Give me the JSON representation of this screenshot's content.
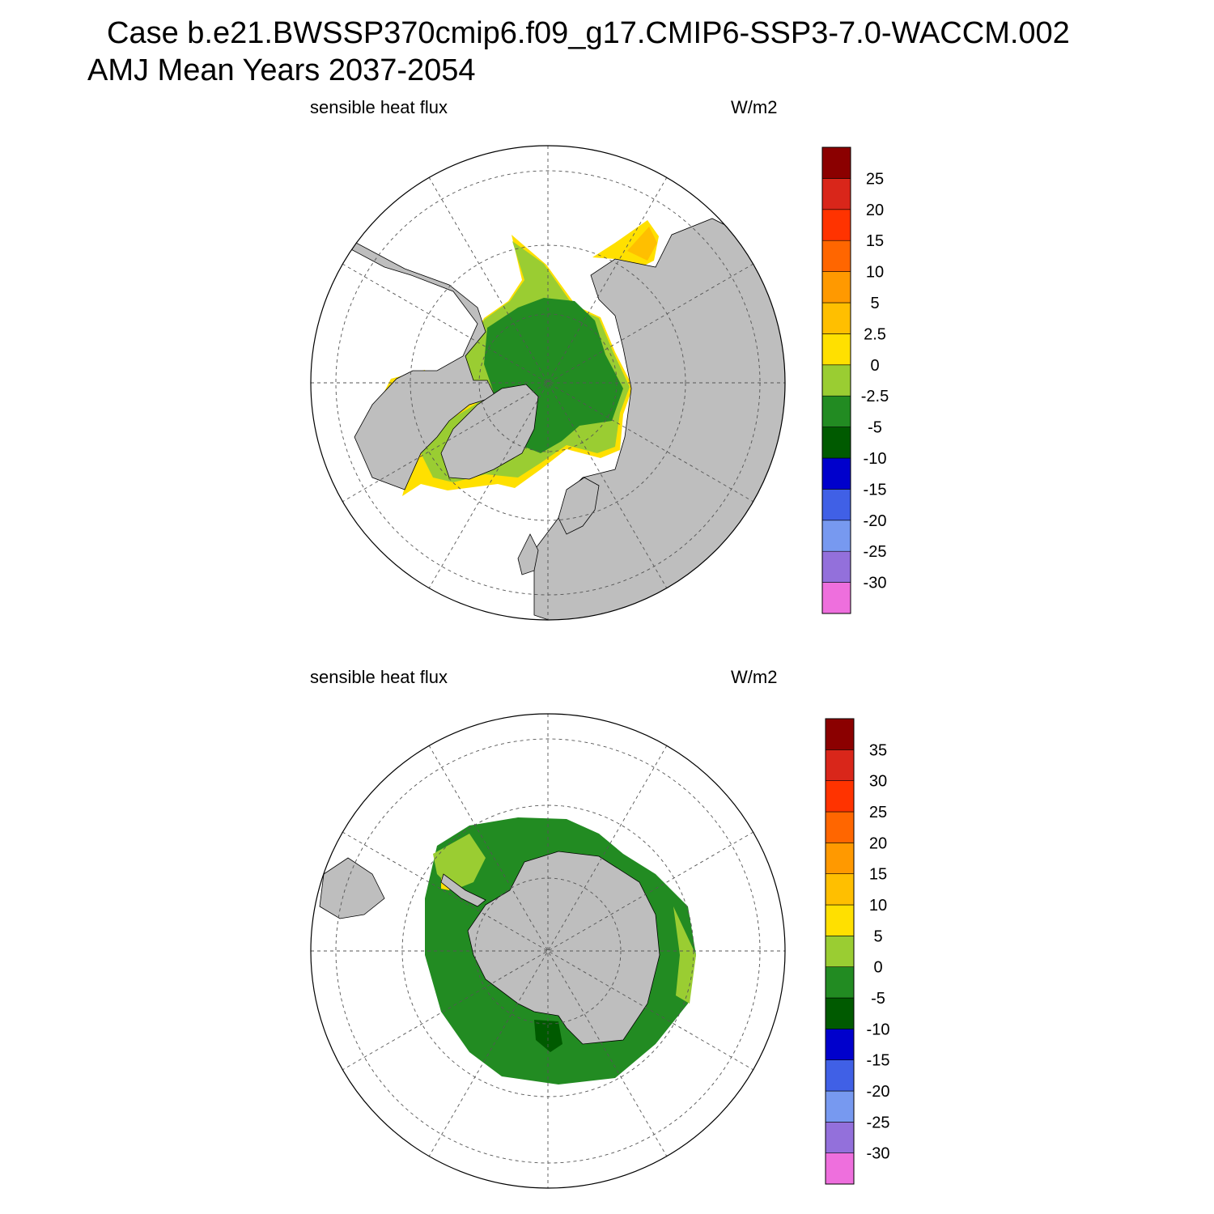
{
  "header": {
    "line1": "Case b.e21.BWSSP370cmip6.f09_g17.CMIP6-SSP3-7.0-WACCM.002",
    "line2": "AMJ Mean   Years 2037-2054"
  },
  "panels": [
    {
      "id": "north",
      "hemisphere": "north",
      "variable_label": "sensible heat flux",
      "units_label": "W/m2",
      "colorbar": {
        "colors": [
          "#ee6fdd",
          "#9370db",
          "#7799f0",
          "#4060e6",
          "#0000cc",
          "#005a00",
          "#228b22",
          "#9acd32",
          "#ffe000",
          "#ffbf00",
          "#ff9900",
          "#ff6600",
          "#ff3300",
          "#d9261a",
          "#8b0000"
        ],
        "tick_labels": [
          "-30",
          "-25",
          "-20",
          "-15",
          "-10",
          "-5",
          "-2.5",
          "0",
          "2.5",
          "5",
          "10",
          "15",
          "20",
          "25"
        ]
      }
    },
    {
      "id": "south",
      "hemisphere": "south",
      "variable_label": "sensible heat flux",
      "units_label": "W/m2",
      "colorbar": {
        "colors": [
          "#ee6fdd",
          "#9370db",
          "#7799f0",
          "#4060e6",
          "#0000cc",
          "#005a00",
          "#228b22",
          "#9acd32",
          "#ffe000",
          "#ffbf00",
          "#ff9900",
          "#ff6600",
          "#ff3300",
          "#d9261a",
          "#8b0000"
        ],
        "tick_labels": [
          "-30",
          "-25",
          "-20",
          "-15",
          "-10",
          "-5",
          "0",
          "5",
          "10",
          "15",
          "20",
          "25",
          "30",
          "35"
        ]
      }
    }
  ]
}
